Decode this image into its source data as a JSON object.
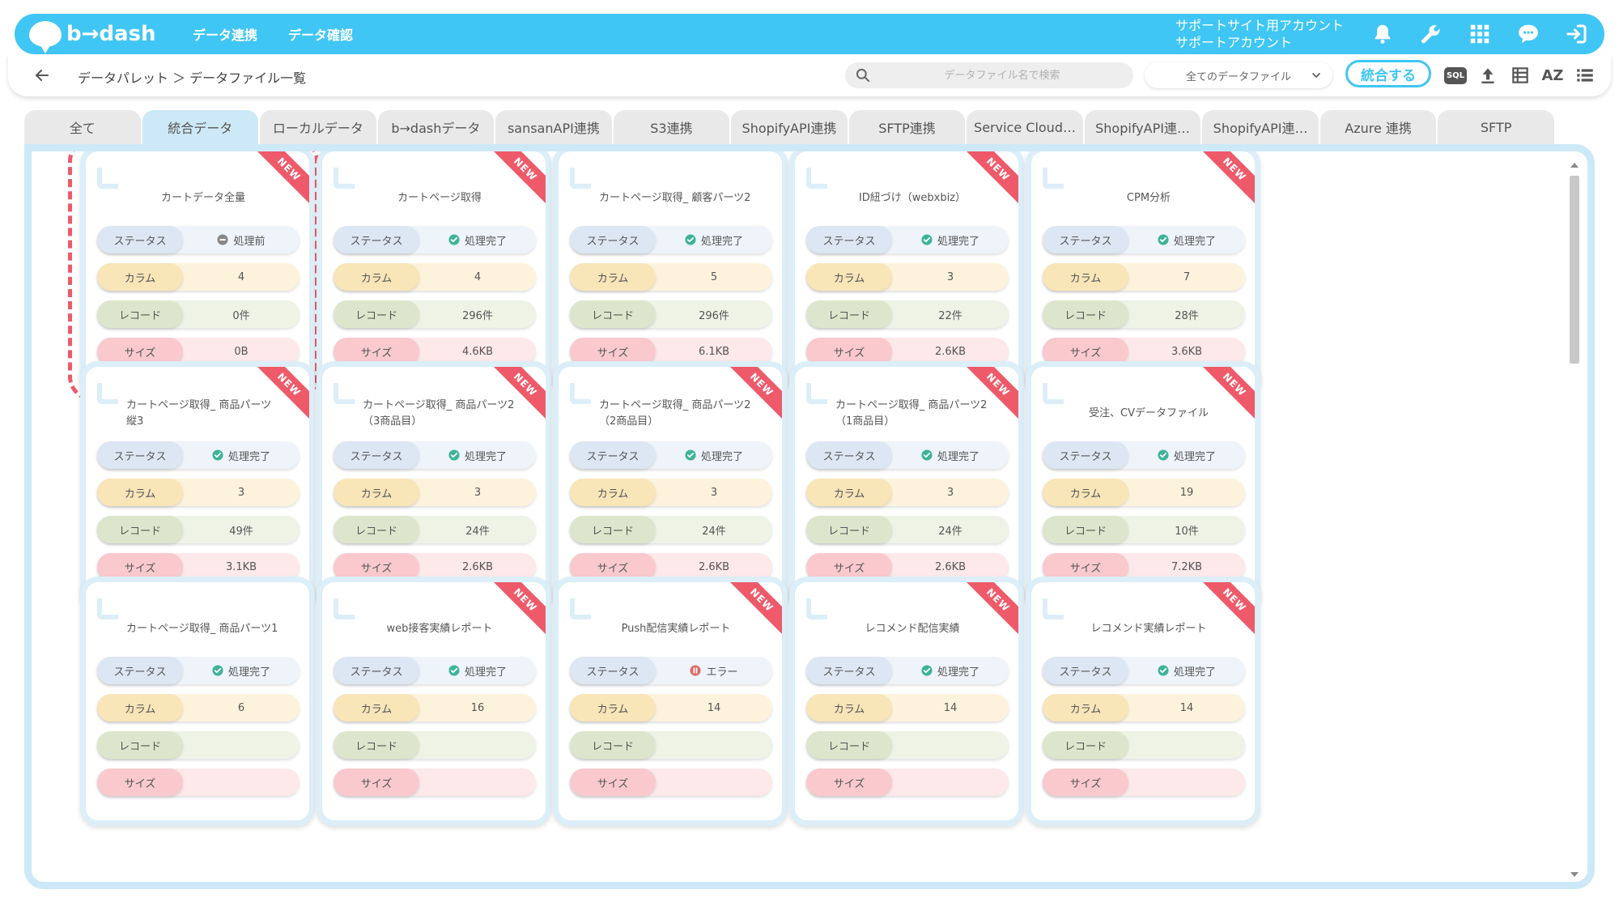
{
  "header": {
    "logo_text": "b→dash",
    "nav": [
      "データ連携",
      "データ確認"
    ],
    "account_line1": "サポートサイト用アカウント",
    "account_line2": "サポートアカウント",
    "icons": [
      "bell-icon",
      "wrench-icon",
      "grid-icon",
      "chat-icon",
      "logout-icon"
    ]
  },
  "subbar": {
    "breadcrumb": "データパレット ＞ データファイル一覧",
    "search_placeholder": "データファイル名で検索",
    "select_value": "全てのデータファイル",
    "merge_label": "統合する",
    "sql_label": "SQL",
    "az_label": "AZ"
  },
  "tabs": [
    {
      "label": "全て",
      "active": false
    },
    {
      "label": "統合データ",
      "active": true
    },
    {
      "label": "ローカルデータ",
      "active": false
    },
    {
      "label": "b→dashデータ",
      "active": false
    },
    {
      "label": "sansanAPI連携",
      "active": false
    },
    {
      "label": "S3連携",
      "active": false
    },
    {
      "label": "ShopifyAPI連携",
      "active": false
    },
    {
      "label": "SFTP連携",
      "active": false
    },
    {
      "label": "Service Cloud…",
      "active": false
    },
    {
      "label": "ShopifyAPI連…",
      "active": false
    },
    {
      "label": "ShopifyAPI連…",
      "active": false
    },
    {
      "label": "Azure 連携",
      "active": false
    },
    {
      "label": "SFTP",
      "active": false
    }
  ],
  "labels": {
    "status": "ステータス",
    "column": "カラム",
    "record": "レコード",
    "size": "サイズ"
  },
  "ribbon_text": "NEW",
  "status_colors": {
    "done": "#3fb39a",
    "pending": "#888888",
    "error": "#e26a6a"
  },
  "cards": [
    {
      "title": "カートデータ全量",
      "new": true,
      "status": "処理前",
      "status_type": "pending",
      "columns": "4",
      "records": "0件",
      "size": "0B",
      "selected": true
    },
    {
      "title": "カートページ取得",
      "new": true,
      "status": "処理完了",
      "status_type": "done",
      "columns": "4",
      "records": "296件",
      "size": "4.6KB"
    },
    {
      "title": "カートページ取得_ 顧客パーツ2",
      "new": false,
      "status": "処理完了",
      "status_type": "done",
      "columns": "5",
      "records": "296件",
      "size": "6.1KB"
    },
    {
      "title": "ID紐づけ（webxbiz）",
      "new": true,
      "status": "処理完了",
      "status_type": "done",
      "columns": "3",
      "records": "22件",
      "size": "2.6KB"
    },
    {
      "title": "CPM分析",
      "new": true,
      "status": "処理完了",
      "status_type": "done",
      "columns": "7",
      "records": "28件",
      "size": "3.6KB"
    },
    {
      "title": "カートページ取得_ 商品パーツ縦3",
      "new": true,
      "status": "処理完了",
      "status_type": "done",
      "columns": "3",
      "records": "49件",
      "size": "3.1KB"
    },
    {
      "title": "カートページ取得_ 商品パーツ2（3商品目）",
      "new": true,
      "status": "処理完了",
      "status_type": "done",
      "columns": "3",
      "records": "24件",
      "size": "2.6KB"
    },
    {
      "title": "カートページ取得_ 商品パーツ2（2商品目）",
      "new": true,
      "status": "処理完了",
      "status_type": "done",
      "columns": "3",
      "records": "24件",
      "size": "2.6KB"
    },
    {
      "title": "カートページ取得_ 商品パーツ2（1商品目）",
      "new": true,
      "status": "処理完了",
      "status_type": "done",
      "columns": "3",
      "records": "24件",
      "size": "2.6KB"
    },
    {
      "title": "受注、CVデータファイル",
      "new": true,
      "status": "処理完了",
      "status_type": "done",
      "columns": "19",
      "records": "10件",
      "size": "7.2KB"
    },
    {
      "title": "カートページ取得_ 商品パーツ1",
      "new": false,
      "status": "処理完了",
      "status_type": "done",
      "columns": "6",
      "records": "",
      "size": ""
    },
    {
      "title": "web接客実績レポート",
      "new": true,
      "status": "処理完了",
      "status_type": "done",
      "columns": "16",
      "records": "",
      "size": ""
    },
    {
      "title": "Push配信実績レポート",
      "new": true,
      "status": "エラー",
      "status_type": "error",
      "columns": "14",
      "records": "",
      "size": ""
    },
    {
      "title": "レコメンド配信実績",
      "new": true,
      "status": "処理完了",
      "status_type": "done",
      "columns": "14",
      "records": "",
      "size": ""
    },
    {
      "title": "レコメンド実績レポート",
      "new": true,
      "status": "処理完了",
      "status_type": "done",
      "columns": "14",
      "records": "",
      "size": ""
    }
  ]
}
